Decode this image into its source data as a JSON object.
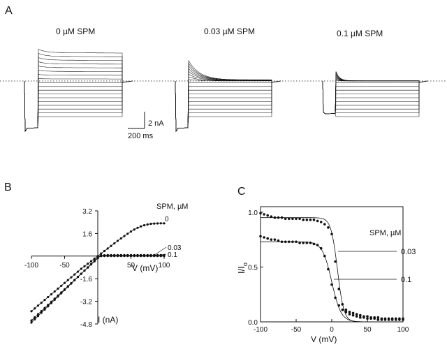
{
  "panels": {
    "a": "A",
    "b": "B",
    "c": "C"
  },
  "colors": {
    "ink": "#111111",
    "background": "#ffffff"
  },
  "chart_data": [
    {
      "id": "A",
      "type": "line",
      "title": "",
      "description_units": {
        "time": "ms",
        "current": "nA"
      },
      "scale_bar": {
        "current_label": "2 nA",
        "time_label": "200 ms",
        "current_value_nA": 2,
        "time_value_ms": 200
      },
      "zero_current_line": "dotted",
      "step_current_levels_nA": [
        3.4,
        2.95,
        2.5,
        2.05,
        1.6,
        1.15,
        0.7,
        0.25,
        -0.2,
        -0.65,
        -1.1,
        -1.55,
        -2.0,
        -2.45,
        -2.9,
        -3.35,
        -3.8,
        -4.25
      ],
      "series": [
        {
          "name": "0 µM SPM",
          "label": "0 µM SPM",
          "outward_block_fraction": 0.0,
          "peak_transient_nA": 0.4,
          "decay_ms": 120
        },
        {
          "name": "0.03 µM SPM",
          "label": "0.03 µM SPM",
          "outward_block_fraction": 0.96,
          "peak_transient_nA": 2.3,
          "decay_ms": 130
        },
        {
          "name": "0.1 µM SPM",
          "label": "0.1 µM SPM",
          "outward_block_fraction": 0.99,
          "peak_transient_nA": 1.1,
          "decay_ms": 40
        }
      ]
    },
    {
      "id": "B",
      "type": "line",
      "xlabel": "V (mV)",
      "ylabel": "I (nA)",
      "xlim": [
        -100,
        100
      ],
      "ylim": [
        -4.8,
        3.2
      ],
      "xticks": [
        -100,
        -50,
        50,
        100
      ],
      "xtick_labels": [
        "-100",
        "-50",
        "50",
        "100"
      ],
      "yticks": [
        3.2,
        1.6,
        -1.6,
        -3.2,
        -4.8
      ],
      "ytick_labels": [
        "3.2",
        "1.6",
        "-1.6",
        "-3.2",
        "-4.8"
      ],
      "legend_title": "SPM, µM",
      "x": [
        -100,
        -95,
        -90,
        -85,
        -80,
        -75,
        -70,
        -65,
        -60,
        -55,
        -50,
        -45,
        -40,
        -35,
        -30,
        -25,
        -20,
        -15,
        -10,
        -5,
        0,
        5,
        10,
        15,
        20,
        25,
        30,
        35,
        40,
        45,
        50,
        55,
        60,
        65,
        70,
        75,
        80,
        85,
        90,
        95,
        100
      ],
      "series": [
        {
          "name": "0",
          "label": "0",
          "values": [
            -3.9,
            -3.7,
            -3.5,
            -3.3,
            -3.1,
            -2.9,
            -2.7,
            -2.5,
            -2.3,
            -2.1,
            -1.9,
            -1.7,
            -1.5,
            -1.3,
            -1.1,
            -0.9,
            -0.72,
            -0.54,
            -0.36,
            -0.18,
            0.0,
            0.18,
            0.36,
            0.54,
            0.72,
            0.9,
            1.08,
            1.25,
            1.42,
            1.58,
            1.74,
            1.88,
            2.0,
            2.1,
            2.18,
            2.24,
            2.28,
            2.3,
            2.31,
            2.32,
            2.32
          ]
        },
        {
          "name": "0.03",
          "label": "0.03",
          "values": [
            -4.55,
            -4.33,
            -4.11,
            -3.89,
            -3.67,
            -3.45,
            -3.23,
            -3.01,
            -2.79,
            -2.57,
            -2.35,
            -2.13,
            -1.91,
            -1.69,
            -1.47,
            -1.25,
            -1.03,
            -0.81,
            -0.59,
            -0.37,
            -0.15,
            0.04,
            0.06,
            0.07,
            0.07,
            0.07,
            0.07,
            0.07,
            0.07,
            0.07,
            0.07,
            0.07,
            0.07,
            0.07,
            0.07,
            0.07,
            0.07,
            0.07,
            0.07,
            0.07,
            0.07
          ]
        },
        {
          "name": "0.1",
          "label": "0.1",
          "values": [
            -4.7,
            -4.47,
            -4.24,
            -4.01,
            -3.78,
            -3.55,
            -3.32,
            -3.09,
            -2.86,
            -2.63,
            -2.4,
            -2.17,
            -1.94,
            -1.71,
            -1.48,
            -1.25,
            -1.02,
            -0.79,
            -0.56,
            -0.33,
            -0.1,
            0.0,
            0.01,
            0.01,
            0.01,
            0.01,
            0.01,
            0.01,
            0.01,
            0.01,
            0.01,
            0.01,
            0.01,
            0.01,
            0.01,
            0.01,
            0.01,
            0.01,
            0.01,
            0.01,
            0.01
          ]
        }
      ]
    },
    {
      "id": "C",
      "type": "scatter",
      "xlabel": "V (mV)",
      "ylabel": "I/I",
      "ylabel_subscript": "o",
      "xlim": [
        -100,
        100
      ],
      "ylim": [
        0,
        1.05
      ],
      "xticks": [
        -100,
        -50,
        0,
        50,
        100
      ],
      "xtick_labels": [
        "-100",
        "-50",
        "0",
        "50",
        "100"
      ],
      "yticks": [
        0.0,
        0.5,
        1.0
      ],
      "ytick_labels": [
        "0.0",
        "0.5",
        "1.0"
      ],
      "legend_title": "SPM, µM",
      "series": [
        {
          "name": "0.03",
          "label": "0.03",
          "x": [
            -100,
            -95,
            -90,
            -85,
            -80,
            -75,
            -70,
            -65,
            -60,
            -55,
            -50,
            -45,
            -40,
            -35,
            -30,
            -25,
            -20,
            -15,
            -10,
            -5,
            0,
            5,
            10,
            15,
            20,
            25,
            30,
            35,
            40,
            45,
            50,
            55,
            60,
            65,
            70,
            75,
            80,
            85,
            90,
            95,
            100
          ],
          "values": [
            0.99,
            0.98,
            0.97,
            0.96,
            0.95,
            0.95,
            0.95,
            0.94,
            0.94,
            0.94,
            0.94,
            0.94,
            0.93,
            0.93,
            0.93,
            0.93,
            0.92,
            0.91,
            0.89,
            0.86,
            0.8,
            0.55,
            0.3,
            0.16,
            0.11,
            0.09,
            0.08,
            0.07,
            0.06,
            0.05,
            0.05,
            0.04,
            0.04,
            0.04,
            0.03,
            0.03,
            0.03,
            0.03,
            0.03,
            0.03,
            0.03
          ],
          "fit": {
            "model": "boltzmann",
            "top": 0.95,
            "v_half_mV": 8,
            "slope_mV": 4.5
          }
        },
        {
          "name": "0.1",
          "label": "0.1",
          "x": [
            -100,
            -95,
            -90,
            -85,
            -80,
            -75,
            -70,
            -65,
            -60,
            -55,
            -50,
            -45,
            -40,
            -35,
            -30,
            -25,
            -20,
            -15,
            -10,
            -5,
            0,
            5,
            10,
            15,
            20,
            25,
            30,
            35,
            40,
            45,
            50,
            55,
            60,
            65,
            70,
            75,
            80,
            85,
            90,
            95,
            100
          ],
          "values": [
            0.78,
            0.77,
            0.76,
            0.75,
            0.75,
            0.74,
            0.73,
            0.73,
            0.73,
            0.73,
            0.73,
            0.72,
            0.72,
            0.72,
            0.72,
            0.71,
            0.7,
            0.67,
            0.6,
            0.48,
            0.34,
            0.22,
            0.15,
            0.11,
            0.09,
            0.07,
            0.06,
            0.05,
            0.04,
            0.04,
            0.03,
            0.03,
            0.03,
            0.02,
            0.02,
            0.02,
            0.02,
            0.02,
            0.02,
            0.02,
            0.02
          ],
          "fit": {
            "model": "boltzmann",
            "top": 0.73,
            "v_half_mV": 0,
            "slope_mV": 6.5
          }
        }
      ]
    }
  ]
}
